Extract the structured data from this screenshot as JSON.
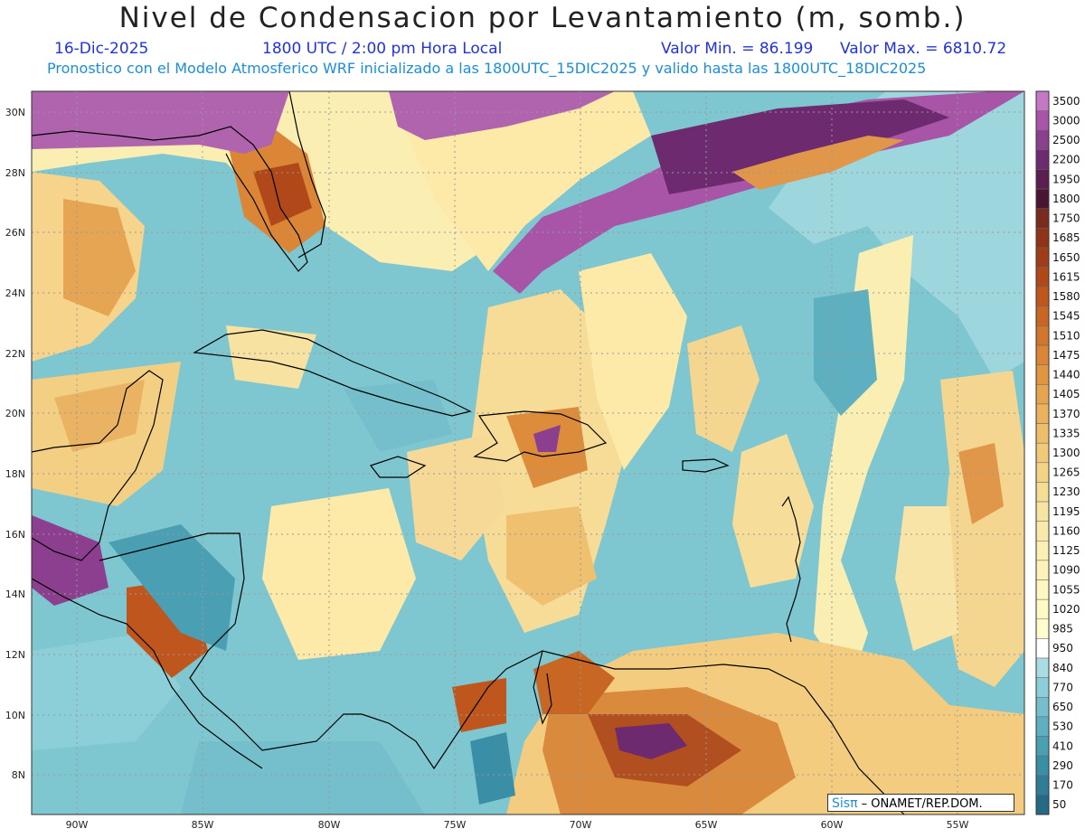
{
  "header": {
    "title": "Nivel de Condensacion por Levantamiento (m, somb.)",
    "date": "16-Dic-2025",
    "time": "1800 UTC / 2:00 pm Hora Local",
    "min_label": "Valor Min. = 86.199",
    "max_label": "Valor Max. = 6810.72",
    "model_line": "Pronostico con el Modelo Atmosferico WRF inicializado a las 1800UTC_15DIC2025 y valido hasta las  1800UTC_18DIC2025"
  },
  "axes": {
    "lon_labels": [
      "90W",
      "85W",
      "80W",
      "75W",
      "70W",
      "65W",
      "60W",
      "55W"
    ],
    "lat_labels": [
      "30N",
      "28N",
      "26N",
      "24N",
      "22N",
      "20N",
      "18N",
      "16N",
      "14N",
      "12N",
      "10N",
      "8N"
    ]
  },
  "legend": {
    "levels": [
      "3500",
      "3000",
      "2500",
      "2200",
      "1950",
      "1800",
      "1750",
      "1685",
      "1650",
      "1615",
      "1580",
      "1545",
      "1510",
      "1475",
      "1440",
      "1405",
      "1370",
      "1335",
      "1300",
      "1265",
      "1230",
      "1195",
      "1160",
      "1125",
      "1090",
      "1055",
      "1020",
      "985",
      "950",
      "840",
      "770",
      "650",
      "530",
      "410",
      "290",
      "170",
      "50"
    ],
    "colors": [
      "#c778c4",
      "#a855a8",
      "#8c3f8e",
      "#6e2a6f",
      "#5a1e4f",
      "#4a1530",
      "#7a2a1e",
      "#8e3419",
      "#a03d18",
      "#b04819",
      "#be561d",
      "#c86624",
      "#d2762c",
      "#da8636",
      "#e09540",
      "#e5a44d",
      "#eab25c",
      "#eebf6b",
      "#f1ca79",
      "#f3d487",
      "#f5dd94",
      "#f7e4a0",
      "#f9eaab",
      "#fbefb3",
      "#fdf3b9",
      "#fef7c0",
      "#fefac6",
      "#fffccc",
      "#ffffff",
      "#a9dde3",
      "#8ccfd8",
      "#74bfcb",
      "#5eb0c0",
      "#4a9fb3",
      "#3a8ea5",
      "#2e7c95",
      "#246a84"
    ]
  },
  "credit": {
    "brand": "Sisπ",
    "text": "– ONAMET/REP.DOM."
  }
}
